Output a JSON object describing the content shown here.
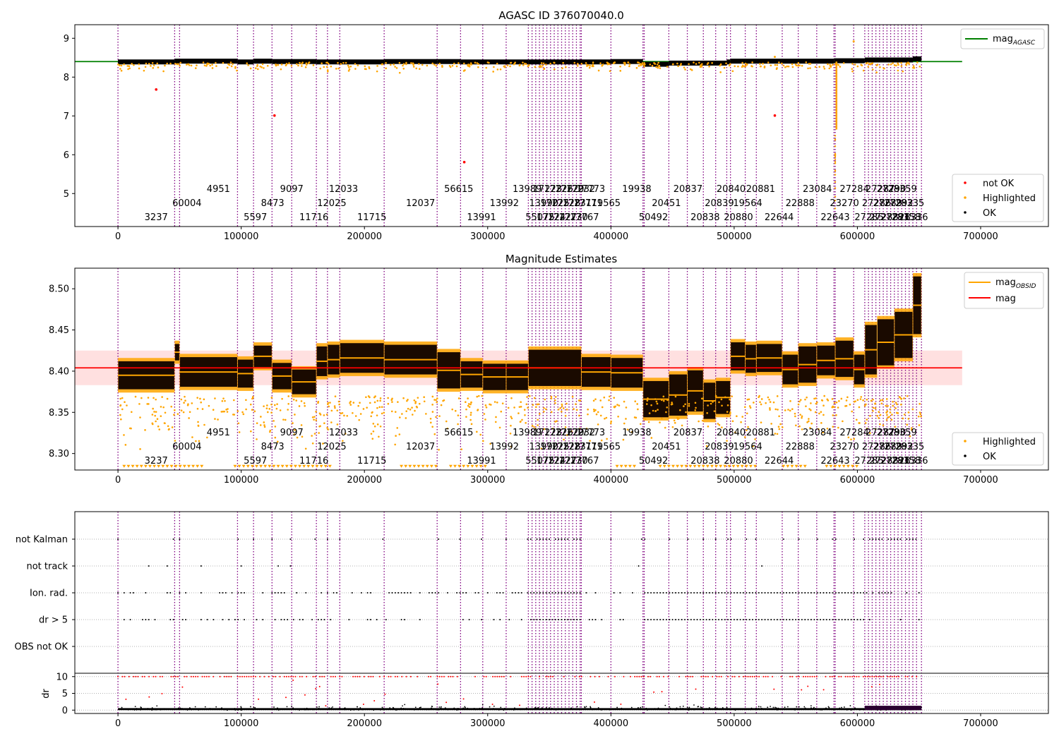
{
  "chart_data": [
    {
      "type": "scatter",
      "title": "AGASC ID 376070040.0",
      "xlim": [
        -35000,
        755000
      ],
      "ylim": [
        4.15,
        9.35
      ],
      "xticks": [
        "0",
        "100000",
        "200000",
        "300000",
        "400000",
        "500000",
        "600000",
        "700000"
      ],
      "xtick_values": [
        0,
        100000,
        200000,
        300000,
        400000,
        500000,
        600000,
        700000
      ],
      "yticks": [
        "5",
        "6",
        "7",
        "8",
        "9"
      ],
      "ytick_values": [
        5,
        6,
        7,
        8,
        9
      ],
      "reference_line": {
        "label": "mag",
        "label_sub": "AGASC",
        "value": 8.4,
        "x_range": [
          -35000,
          685000
        ],
        "color": "#008000"
      },
      "legend_top": {
        "placement": "top-right",
        "entries": [
          {
            "label": "mag",
            "sub": "AGASC",
            "color": "#008000",
            "kind": "line"
          }
        ]
      },
      "legend_bottom": {
        "placement": "lower-right",
        "entries": [
          {
            "label": "not OK",
            "color": "#ff0000",
            "kind": "dot"
          },
          {
            "label": "Highlighted",
            "color": "#ffa500",
            "kind": "dot"
          },
          {
            "label": "OK",
            "color": "#000000",
            "kind": "dot"
          }
        ]
      },
      "outliers_not_ok": [
        [
          31000,
          7.68
        ],
        [
          127000,
          7.01
        ],
        [
          281000,
          5.81
        ],
        [
          533000,
          7.01
        ]
      ],
      "series": [
        {
          "name": "OK",
          "color": "#000000",
          "x_range": [
            0,
            652000
          ],
          "levels": [
            [
              0,
              8.4
            ],
            [
              46000,
              8.42
            ],
            [
              97000,
              8.4
            ],
            [
              110000,
              8.42
            ],
            [
              125000,
              8.41
            ],
            [
              161000,
              8.4
            ],
            [
              216000,
              8.41
            ],
            [
              259000,
              8.41
            ],
            [
              278000,
              8.4
            ],
            [
              333000,
              8.4
            ],
            [
              400000,
              8.41
            ],
            [
              426000,
              8.34
            ],
            [
              447000,
              8.37
            ],
            [
              494000,
              8.4
            ],
            [
              497000,
              8.42
            ],
            [
              539000,
              8.42
            ],
            [
              581000,
              8.43
            ],
            [
              606000,
              8.45
            ],
            [
              645000,
              8.48
            ]
          ]
        },
        {
          "name": "Highlighted",
          "color": "#ffa500",
          "x_range": [
            0,
            652000
          ],
          "dip": {
            "x": 583000,
            "low": 6.65
          }
        }
      ]
    },
    {
      "type": "scatter",
      "title": "Magnitude Estimates",
      "xlim": [
        -35000,
        755000
      ],
      "ylim": [
        8.28,
        8.525
      ],
      "xticks": [
        "0",
        "100000",
        "200000",
        "300000",
        "400000",
        "500000",
        "600000",
        "700000"
      ],
      "xtick_values": [
        0,
        100000,
        200000,
        300000,
        400000,
        500000,
        600000,
        700000
      ],
      "yticks": [
        "8.30",
        "8.35",
        "8.40",
        "8.45",
        "8.50"
      ],
      "ytick_values": [
        8.3,
        8.35,
        8.4,
        8.45,
        8.5
      ],
      "mag_line": {
        "label": "mag",
        "value": 8.404,
        "x_range": [
          -35000,
          685000
        ],
        "color": "#ff0000",
        "band": [
          8.383,
          8.425
        ]
      },
      "legend_top": {
        "placement": "top-right",
        "entries": [
          {
            "label": "mag",
            "sub": "OBSID",
            "color": "#ffa500",
            "kind": "line"
          },
          {
            "label": "mag",
            "sub": "",
            "color": "#ff0000",
            "kind": "line"
          }
        ]
      },
      "legend_bottom": {
        "placement": "lower-right",
        "entries": [
          {
            "label": "Highlighted",
            "color": "#ffa500",
            "kind": "dot"
          },
          {
            "label": "OK",
            "color": "#000000",
            "kind": "dot"
          }
        ]
      },
      "observations": [
        {
          "x0": 0,
          "x1": 46000,
          "mag": 8.395,
          "spread": 0.017
        },
        {
          "x0": 46000,
          "x1": 50000,
          "mag": 8.423,
          "spread": 0.01
        },
        {
          "x0": 50000,
          "x1": 97000,
          "mag": 8.399,
          "spread": 0.018
        },
        {
          "x0": 97000,
          "x1": 110000,
          "mag": 8.397,
          "spread": 0.017
        },
        {
          "x0": 110000,
          "x1": 125000,
          "mag": 8.418,
          "spread": 0.013
        },
        {
          "x0": 125000,
          "x1": 141000,
          "mag": 8.394,
          "spread": 0.016
        },
        {
          "x0": 141000,
          "x1": 161000,
          "mag": 8.387,
          "spread": 0.015
        },
        {
          "x0": 161000,
          "x1": 170000,
          "mag": 8.412,
          "spread": 0.018
        },
        {
          "x0": 170000,
          "x1": 180000,
          "mag": 8.414,
          "spread": 0.018
        },
        {
          "x0": 180000,
          "x1": 216000,
          "mag": 8.416,
          "spread": 0.018
        },
        {
          "x0": 216000,
          "x1": 259000,
          "mag": 8.414,
          "spread": 0.018
        },
        {
          "x0": 259000,
          "x1": 278000,
          "mag": 8.401,
          "spread": 0.022
        },
        {
          "x0": 278000,
          "x1": 296000,
          "mag": 8.396,
          "spread": 0.016
        },
        {
          "x0": 296000,
          "x1": 315000,
          "mag": 8.393,
          "spread": 0.016
        },
        {
          "x0": 315000,
          "x1": 333000,
          "mag": 8.393,
          "spread": 0.016
        },
        {
          "x0": 333000,
          "x1": 376000,
          "mag": 8.404,
          "spread": 0.022
        },
        {
          "x0": 376000,
          "x1": 400000,
          "mag": 8.399,
          "spread": 0.018
        },
        {
          "x0": 400000,
          "x1": 426000,
          "mag": 8.398,
          "spread": 0.018
        },
        {
          "x0": 426000,
          "x1": 447000,
          "mag": 8.366,
          "spread": 0.022
        },
        {
          "x0": 447000,
          "x1": 462000,
          "mag": 8.371,
          "spread": 0.025
        },
        {
          "x0": 462000,
          "x1": 475000,
          "mag": 8.376,
          "spread": 0.025
        },
        {
          "x0": 475000,
          "x1": 485000,
          "mag": 8.364,
          "spread": 0.022
        },
        {
          "x0": 485000,
          "x1": 497000,
          "mag": 8.368,
          "spread": 0.02
        },
        {
          "x0": 497000,
          "x1": 509000,
          "mag": 8.418,
          "spread": 0.017
        },
        {
          "x0": 509000,
          "x1": 518000,
          "mag": 8.415,
          "spread": 0.017
        },
        {
          "x0": 518000,
          "x1": 539000,
          "mag": 8.416,
          "spread": 0.017
        },
        {
          "x0": 539000,
          "x1": 552000,
          "mag": 8.402,
          "spread": 0.018
        },
        {
          "x0": 552000,
          "x1": 567000,
          "mag": 8.408,
          "spread": 0.022
        },
        {
          "x0": 567000,
          "x1": 582000,
          "mag": 8.413,
          "spread": 0.018
        },
        {
          "x0": 582000,
          "x1": 597000,
          "mag": 8.415,
          "spread": 0.022
        },
        {
          "x0": 597000,
          "x1": 606000,
          "mag": 8.402,
          "spread": 0.018
        },
        {
          "x0": 606000,
          "x1": 616000,
          "mag": 8.426,
          "spread": 0.03
        },
        {
          "x0": 616000,
          "x1": 630000,
          "mag": 8.435,
          "spread": 0.028
        },
        {
          "x0": 630000,
          "x1": 645000,
          "mag": 8.444,
          "spread": 0.028
        },
        {
          "x0": 645000,
          "x1": 652000,
          "mag": 8.48,
          "spread": 0.035
        }
      ]
    },
    {
      "type": "scatter",
      "title": "",
      "xlim": [
        -35000,
        755000
      ],
      "xticks": [
        "0",
        "100000",
        "200000",
        "300000",
        "400000",
        "500000",
        "600000",
        "700000"
      ],
      "xtick_values": [
        0,
        100000,
        200000,
        300000,
        400000,
        500000,
        600000,
        700000
      ],
      "flag_rows": [
        "not Kalman",
        "not track",
        "Ion. rad.",
        "dr > 5",
        "OBS not OK"
      ],
      "ylabel": "dr",
      "dr_yticks": [
        "0",
        "5",
        "10"
      ],
      "dr_ytick_values": [
        0,
        5,
        10
      ],
      "dr_ylim": [
        -1,
        11
      ],
      "dr_clip_value": 10,
      "grid": "dotted horizontal"
    }
  ],
  "observation_boundaries": [
    0,
    46000,
    50000,
    97000,
    110000,
    125000,
    141000,
    161000,
    170000,
    180000,
    216000,
    259000,
    278000,
    296000,
    315000,
    333000,
    336000,
    339000,
    342000,
    345000,
    348000,
    351000,
    354000,
    357000,
    360000,
    363000,
    366000,
    369000,
    372000,
    375000,
    376000,
    400000,
    426000,
    427000,
    447000,
    462000,
    475000,
    485000,
    494000,
    497000,
    509000,
    518000,
    539000,
    552000,
    567000,
    581000,
    582000,
    597000,
    606000,
    609000,
    612000,
    615000,
    618000,
    621000,
    624000,
    627000,
    630000,
    633000,
    636000,
    639000,
    642000,
    645000,
    648000,
    652000
  ],
  "obsid_labels": [
    {
      "x": 3237,
      "row": 0,
      "text": "3237"
    },
    {
      "x": 60004,
      "row": 1,
      "text": "60004"
    },
    {
      "x": 4951,
      "row": 2,
      "text": "4951"
    },
    {
      "x": 5597,
      "row": 0,
      "text": "5597"
    },
    {
      "x": 8473,
      "row": 1,
      "text": "8473"
    },
    {
      "x": 9097,
      "row": 2,
      "text": "9097"
    },
    {
      "x": 11716,
      "row": 0,
      "text": "11716"
    },
    {
      "x": 12025,
      "row": 1,
      "text": "12025"
    },
    {
      "x": 12033,
      "row": 2,
      "text": "12033"
    },
    {
      "x": 11715,
      "row": 0,
      "text": "11715"
    },
    {
      "x": 12037,
      "row": 1,
      "text": "12037"
    },
    {
      "x": 56615,
      "row": 2,
      "text": "56615"
    },
    {
      "x": 13991,
      "row": 0,
      "text": "13991"
    },
    {
      "x": 13992,
      "row": 1,
      "text": "13992"
    },
    {
      "x": 13989,
      "row": 2,
      "text": "13989"
    },
    {
      "x": 55075,
      "row": 0,
      "text": "55075"
    },
    {
      "x": 13990,
      "row": 1,
      "text": "13990"
    },
    {
      "x": 17223,
      "row": 2,
      "text": "17223"
    },
    {
      "x": 17224,
      "row": 0,
      "text": "17224"
    },
    {
      "x": 17225,
      "row": 1,
      "text": "17225"
    },
    {
      "x": 17226,
      "row": 2,
      "text": "17226"
    },
    {
      "x": 17227,
      "row": 0,
      "text": "17227"
    },
    {
      "x": 17228,
      "row": 1,
      "text": "17228"
    },
    {
      "x": 17229,
      "row": 2,
      "text": "17229"
    },
    {
      "x": 17230,
      "row": 0,
      "text": "17230"
    },
    {
      "x": 17231,
      "row": 1,
      "text": "17231"
    },
    {
      "x": 17232,
      "row": 2,
      "text": "17232"
    },
    {
      "x": 17767,
      "row": 0,
      "text": "17767"
    },
    {
      "x": 17771,
      "row": 1,
      "text": "17771"
    },
    {
      "x": 17773,
      "row": 2,
      "text": "17773"
    },
    {
      "x": 19565,
      "row": 1,
      "text": "19565"
    },
    {
      "x": 19938,
      "row": 2,
      "text": "19938"
    },
    {
      "x": 50492,
      "row": 0,
      "text": "50492"
    },
    {
      "x": 20451,
      "row": 1,
      "text": "20451"
    },
    {
      "x": 20837,
      "row": 2,
      "text": "20837"
    },
    {
      "x": 20838,
      "row": 0,
      "text": "20838"
    },
    {
      "x": 20839,
      "row": 1,
      "text": "20839"
    },
    {
      "x": 20840,
      "row": 2,
      "text": "20840"
    },
    {
      "x": 20880,
      "row": 0,
      "text": "20880"
    },
    {
      "x": 19564,
      "row": 1,
      "text": "19564"
    },
    {
      "x": 20881,
      "row": 2,
      "text": "20881"
    },
    {
      "x": 22644,
      "row": 0,
      "text": "22644"
    },
    {
      "x": 22888,
      "row": 1,
      "text": "22888"
    },
    {
      "x": 23084,
      "row": 2,
      "text": "23084"
    },
    {
      "x": 22643,
      "row": 0,
      "text": "22643"
    },
    {
      "x": 23270,
      "row": 1,
      "text": "23270"
    },
    {
      "x": 27284,
      "row": 2,
      "text": "27284"
    },
    {
      "x": 27285,
      "row": 0,
      "text": "27285"
    },
    {
      "x": 27286,
      "row": 1,
      "text": "27286"
    },
    {
      "x": 27287,
      "row": 2,
      "text": "27287"
    },
    {
      "x": 27288,
      "row": 0,
      "text": "27288"
    },
    {
      "x": 27289,
      "row": 1,
      "text": "27289"
    },
    {
      "x": 27290,
      "row": 2,
      "text": "27290"
    },
    {
      "x": 27291,
      "row": 0,
      "text": "27291"
    },
    {
      "x": 27292,
      "row": 1,
      "text": "27292"
    },
    {
      "x": 28359,
      "row": 2,
      "text": "28359"
    },
    {
      "x": 28358,
      "row": 0,
      "text": "28358"
    },
    {
      "x": 28335,
      "row": 1,
      "text": "28335"
    },
    {
      "x": 28336,
      "row": 0,
      "text": "28336"
    }
  ]
}
